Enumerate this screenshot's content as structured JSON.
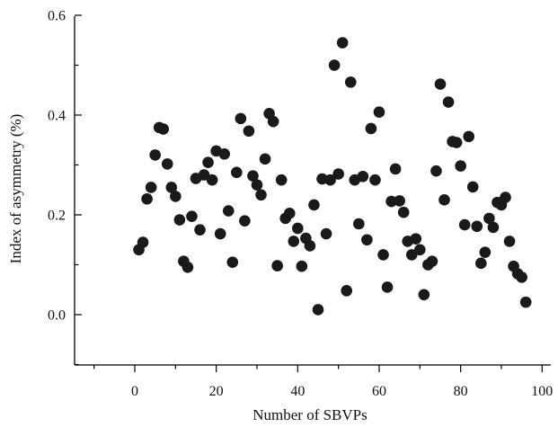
{
  "chart_data": {
    "type": "scatter",
    "xlabel": "Number of SBVPs",
    "ylabel": "Index of asymmetry (%)",
    "xlim": [
      -15,
      100
    ],
    "ylim": [
      -0.1,
      0.6
    ],
    "xticks": [
      0,
      20,
      40,
      60,
      80,
      100
    ],
    "xtick_labels": [
      "0",
      "20",
      "40",
      "60",
      "80",
      "100"
    ],
    "yticks": [
      0.0,
      0.2,
      0.4,
      0.6
    ],
    "ytick_labels": [
      "0.0",
      "0.2",
      "0.4",
      "0.6"
    ],
    "grid": false,
    "marker_color": "#1a1a1a",
    "series": [
      {
        "x": [
          1,
          2,
          3,
          4,
          5,
          6,
          7,
          8,
          9,
          10,
          11,
          12,
          13,
          14,
          15,
          16,
          17,
          18,
          19,
          20,
          21,
          22,
          23,
          24,
          25,
          26,
          27,
          28,
          29,
          30,
          31,
          32,
          33,
          34,
          35,
          36,
          37,
          38,
          39,
          40,
          41,
          42,
          43,
          44,
          45,
          46,
          47,
          48,
          49,
          50,
          51,
          52,
          53,
          54,
          55,
          56,
          57,
          58,
          59,
          60,
          61,
          62,
          63,
          64,
          65,
          66,
          67,
          68,
          69,
          70,
          71,
          72,
          73,
          74,
          75,
          76,
          77,
          78,
          79,
          80,
          81,
          82,
          83,
          84,
          85,
          86,
          87,
          88,
          89,
          90,
          91,
          92,
          93,
          94,
          95,
          96
        ],
        "y": [
          0.13,
          0.145,
          0.232,
          0.255,
          0.32,
          0.375,
          0.372,
          0.302,
          0.255,
          0.237,
          0.19,
          0.107,
          0.095,
          0.197,
          0.273,
          0.17,
          0.28,
          0.305,
          0.27,
          0.328,
          0.162,
          0.322,
          0.208,
          0.105,
          0.285,
          0.393,
          0.188,
          0.368,
          0.278,
          0.26,
          0.24,
          0.312,
          0.403,
          0.387,
          0.098,
          0.27,
          0.193,
          0.203,
          0.147,
          0.173,
          0.097,
          0.153,
          0.138,
          0.22,
          0.01,
          0.272,
          0.162,
          0.27,
          0.5,
          0.282,
          0.545,
          0.048,
          0.466,
          0.27,
          0.182,
          0.277,
          0.15,
          0.373,
          0.27,
          0.406,
          0.12,
          0.055,
          0.227,
          0.292,
          0.228,
          0.205,
          0.147,
          0.12,
          0.152,
          0.13,
          0.04,
          0.1,
          0.107,
          0.288,
          0.462,
          0.23,
          0.426,
          0.347,
          0.345,
          0.298,
          0.18,
          0.357,
          0.256,
          0.177,
          0.103,
          0.125,
          0.193,
          0.175,
          0.225,
          0.22,
          0.235,
          0.147,
          0.097,
          0.082,
          0.075,
          0.025
        ]
      }
    ]
  }
}
